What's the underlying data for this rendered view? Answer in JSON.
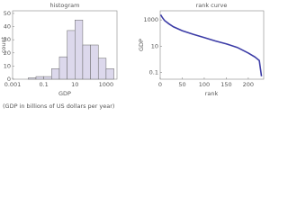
{
  "chart_data": [
    {
      "type": "histogram",
      "title": "histogram",
      "x_label": "GDP",
      "y_label": "count",
      "bins": [
        0.01,
        0.0316,
        0.1,
        0.316,
        1,
        3.16,
        10,
        31.6,
        100,
        316,
        1000,
        3162
      ],
      "values": [
        1,
        2,
        2,
        8,
        17,
        37,
        45,
        26,
        26,
        16,
        8
      ],
      "color": "#dcd8ec",
      "xscale": "log",
      "xlim": [
        0.001,
        5000
      ],
      "xticks": [
        0.001,
        0.1,
        10,
        1000
      ],
      "ylim": [
        0,
        52
      ],
      "yticks": [
        0,
        10,
        20,
        30,
        40,
        50
      ]
    },
    {
      "type": "line",
      "title": "rank curve",
      "x_label": "rank",
      "y_label": "GDP",
      "x": [
        1,
        5,
        10,
        20,
        30,
        50,
        75,
        100,
        125,
        150,
        175,
        200,
        215,
        225,
        230
      ],
      "values": [
        2500,
        1500,
        900,
        500,
        300,
        150,
        80,
        45,
        25,
        15,
        8,
        3,
        1.5,
        0.8,
        0.05
      ],
      "color": "#3b3ba6",
      "yscale": "log",
      "xlim": [
        0,
        235
      ],
      "xticks": [
        0,
        50,
        100,
        150,
        200
      ],
      "ylim": [
        0.03,
        5000
      ],
      "yticks": [
        0.1,
        10,
        1000
      ]
    }
  ],
  "caption": "(GDP in billions of US dollars per year)"
}
